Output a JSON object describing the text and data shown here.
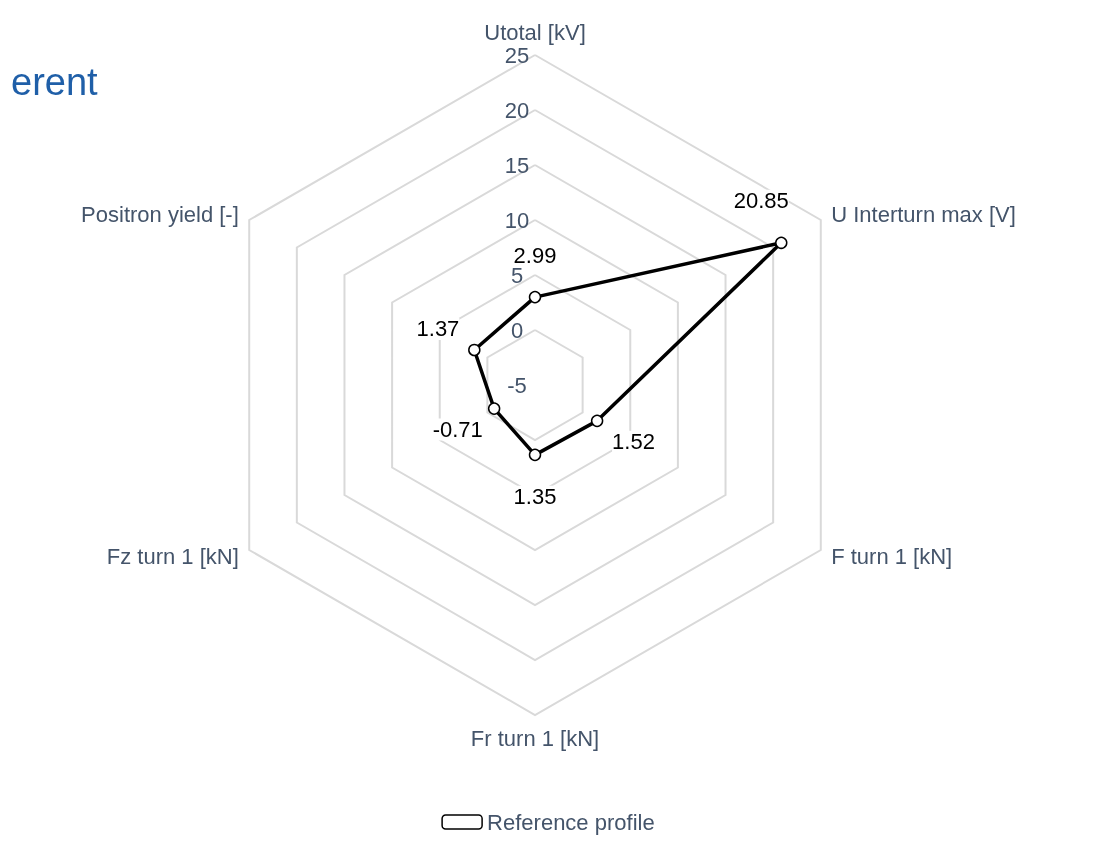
{
  "chart_data": {
    "type": "radar",
    "title": "erent",
    "categories": [
      "Utotal [kV]",
      "U Interturn max [V]",
      "F turn 1 [kN]",
      "Fr turn 1 [kN]",
      "Fz turn 1 [kN]",
      "Positron yield [-]"
    ],
    "series": [
      {
        "name": "Reference profile",
        "color": "#000000",
        "values": [
          2.99,
          20.85,
          1.52,
          1.35,
          -0.71,
          1.37
        ]
      }
    ],
    "ylim": [
      -5,
      25
    ],
    "yticks": [
      -5,
      0,
      5,
      10,
      15,
      20,
      25
    ],
    "data_labels": true,
    "marker": "circle",
    "legend": "bottom",
    "grid": true
  }
}
